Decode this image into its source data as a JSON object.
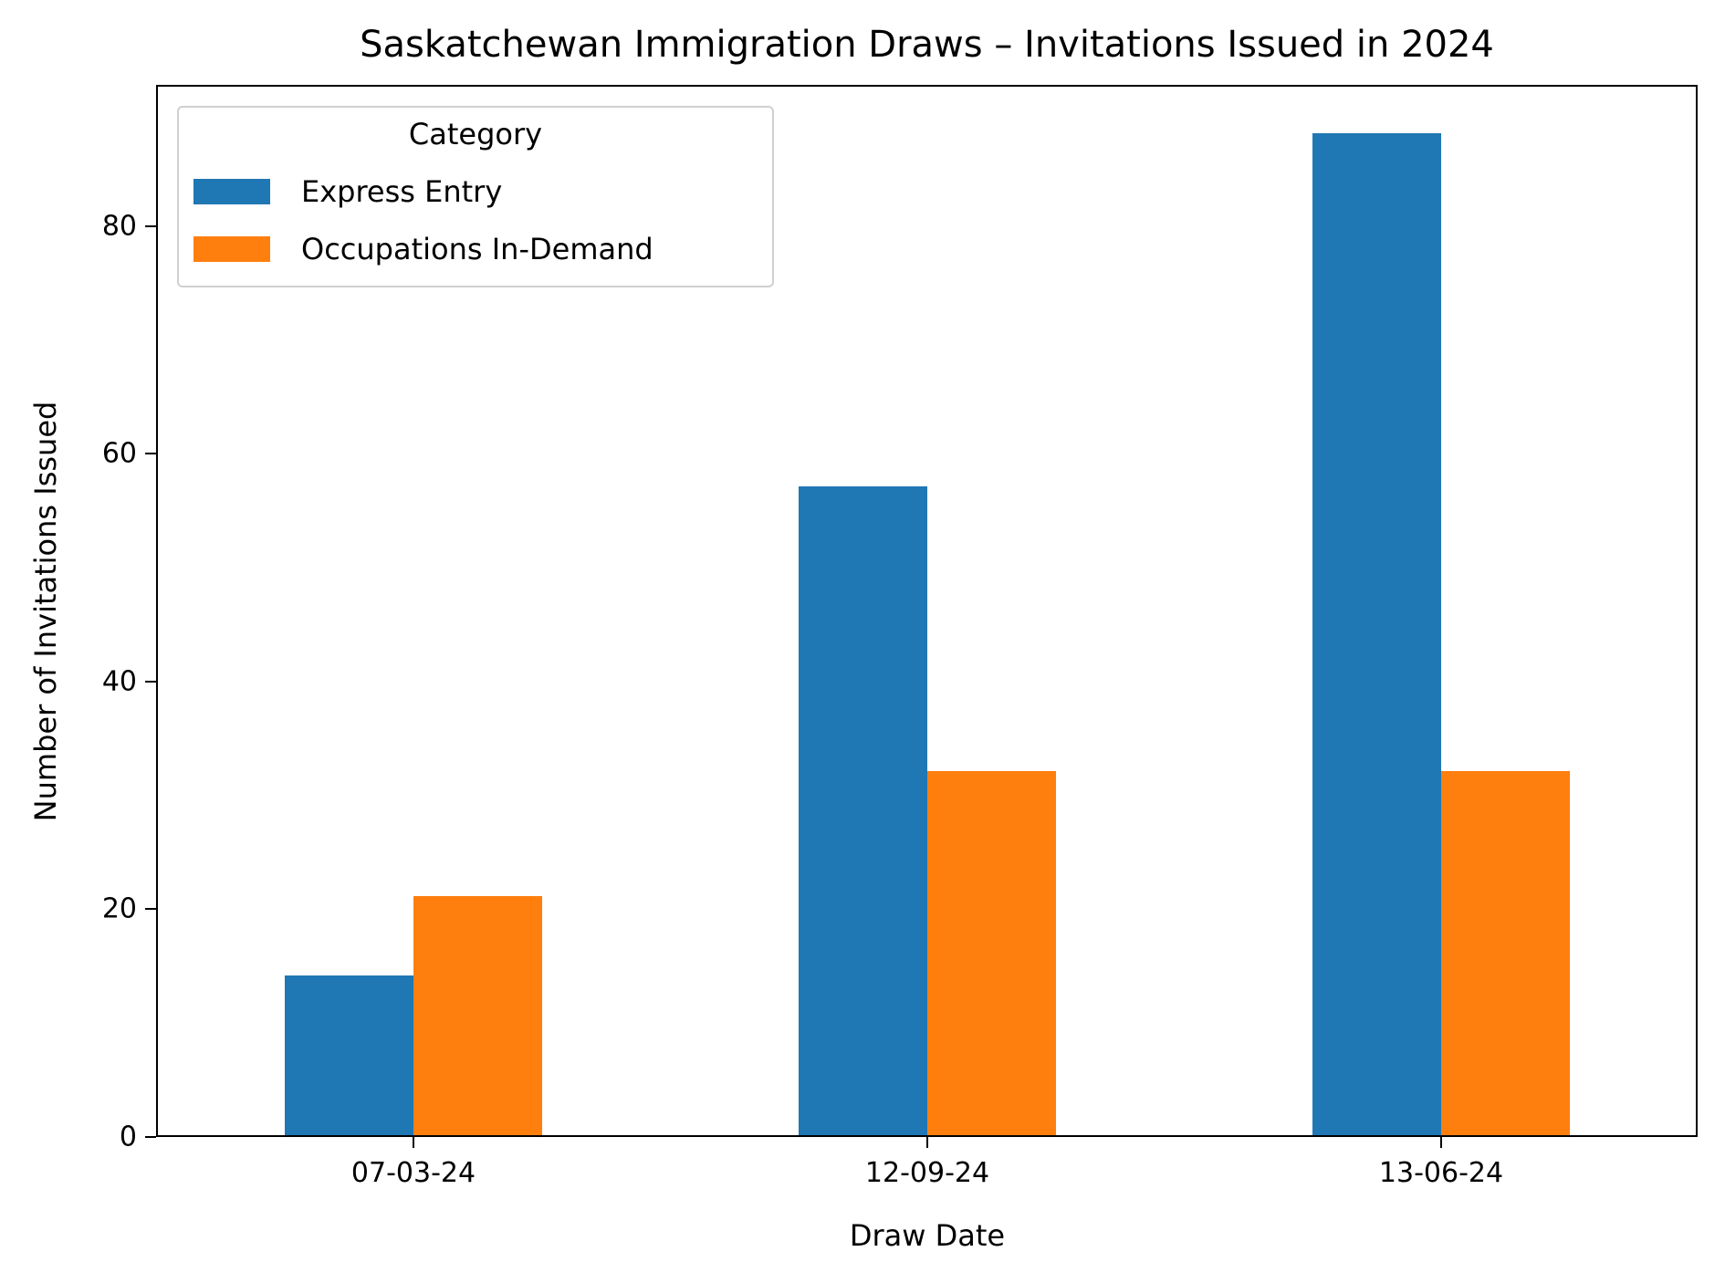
{
  "chart_data": {
    "type": "bar",
    "title": "Saskatchewan Immigration Draws – Invitations Issued in 2024",
    "xlabel": "Draw Date",
    "ylabel": "Number of Invitations Issued",
    "categories": [
      "07-03-24",
      "12-09-24",
      "13-06-24"
    ],
    "series": [
      {
        "name": "Express Entry",
        "color": "#1f77b4",
        "values": [
          14,
          57,
          88
        ]
      },
      {
        "name": "Occupations In-Demand",
        "color": "#ff7f0e",
        "values": [
          21,
          32,
          32
        ]
      }
    ],
    "ylim": [
      0,
      92.4
    ],
    "yticks": [
      "0",
      "20",
      "40",
      "60",
      "80"
    ],
    "legend": {
      "title": "Category",
      "position": "upper left"
    },
    "grid": false
  }
}
